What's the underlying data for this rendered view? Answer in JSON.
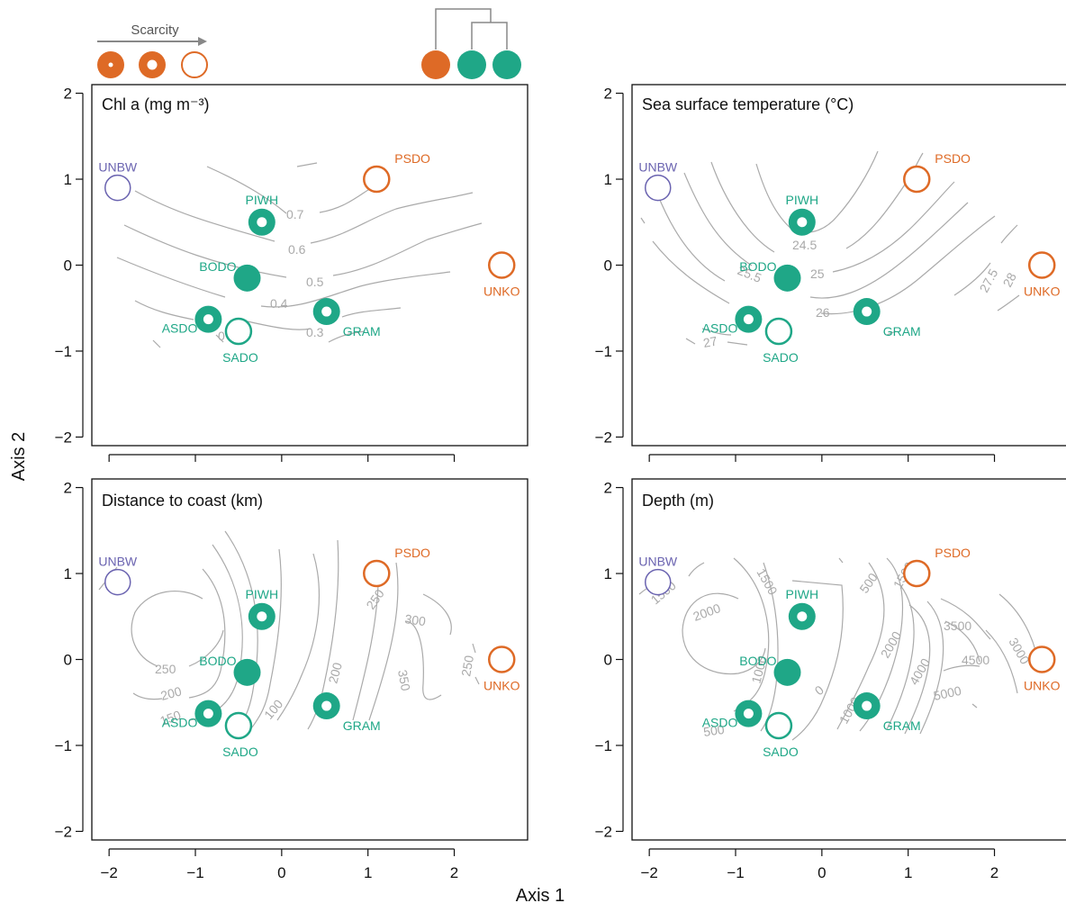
{
  "figure": {
    "xlabel": "Axis 1",
    "ylabel": "Axis 2"
  },
  "legend": {
    "scarcity_label": "Scarcity",
    "scarcity_color": "#de6a26"
  },
  "colors": {
    "green": "#1fa787",
    "orange": "#de6a26",
    "purple": "#6a63b0",
    "contour": "#aaaaaa",
    "axis": "#111111",
    "legend_grey": "#777777"
  },
  "chart_data": [
    {
      "type": "scatter",
      "title": "Chl a (mg m⁻³)",
      "xlim": [
        -2.2,
        2.85
      ],
      "ylim": [
        -2.1,
        2.1
      ],
      "xticks": [
        "−2",
        "−1",
        "0",
        "1",
        "2"
      ],
      "yticks": [
        "−2",
        "−1",
        "0",
        "1",
        "2"
      ],
      "contour_labels": [
        "0.7",
        "0.6",
        "0.5",
        "0.4",
        "0.3",
        "0"
      ],
      "points": [
        {
          "label": "UNBW",
          "x": -1.9,
          "y": 0.9,
          "group": "purple",
          "scarcity": "open"
        },
        {
          "label": "PSDO",
          "x": 1.1,
          "y": 1.0,
          "group": "orange",
          "scarcity": "open"
        },
        {
          "label": "PIWH",
          "x": -0.23,
          "y": 0.5,
          "group": "green",
          "scarcity": "ring"
        },
        {
          "label": "BODO",
          "x": -0.4,
          "y": -0.15,
          "group": "green",
          "scarcity": "filled"
        },
        {
          "label": "UNKO",
          "x": 2.55,
          "y": 0.0,
          "group": "orange",
          "scarcity": "open"
        },
        {
          "label": "ASDO",
          "x": -0.85,
          "y": -0.63,
          "group": "green",
          "scarcity": "ring"
        },
        {
          "label": "SADO",
          "x": -0.5,
          "y": -0.77,
          "group": "green",
          "scarcity": "open"
        },
        {
          "label": "GRAM",
          "x": 0.52,
          "y": -0.54,
          "group": "green",
          "scarcity": "ring"
        }
      ]
    },
    {
      "type": "scatter",
      "title": "Sea surface temperature (°C)",
      "xlim": [
        -2.2,
        2.85
      ],
      "ylim": [
        -2.1,
        2.1
      ],
      "xticks": [
        "−2",
        "−1",
        "0",
        "1",
        "2"
      ],
      "yticks": [
        "−2",
        "−1",
        "0",
        "1",
        "2"
      ],
      "contour_labels": [
        "24.5",
        "25",
        "25.5",
        "26",
        "27",
        "27.5",
        "28"
      ],
      "points": [
        {
          "label": "UNBW",
          "x": -1.9,
          "y": 0.9,
          "group": "purple",
          "scarcity": "open"
        },
        {
          "label": "PSDO",
          "x": 1.1,
          "y": 1.0,
          "group": "orange",
          "scarcity": "open"
        },
        {
          "label": "PIWH",
          "x": -0.23,
          "y": 0.5,
          "group": "green",
          "scarcity": "ring"
        },
        {
          "label": "BODO",
          "x": -0.4,
          "y": -0.15,
          "group": "green",
          "scarcity": "filled"
        },
        {
          "label": "UNKO",
          "x": 2.55,
          "y": 0.0,
          "group": "orange",
          "scarcity": "open"
        },
        {
          "label": "ASDO",
          "x": -0.85,
          "y": -0.63,
          "group": "green",
          "scarcity": "ring"
        },
        {
          "label": "SADO",
          "x": -0.5,
          "y": -0.77,
          "group": "green",
          "scarcity": "open"
        },
        {
          "label": "GRAM",
          "x": 0.52,
          "y": -0.54,
          "group": "green",
          "scarcity": "ring"
        }
      ]
    },
    {
      "type": "scatter",
      "title": "Distance to coast (km)",
      "xlim": [
        -2.2,
        2.85
      ],
      "ylim": [
        -2.1,
        2.1
      ],
      "xticks": [
        "−2",
        "−1",
        "0",
        "1",
        "2"
      ],
      "yticks": [
        "−2",
        "−1",
        "0",
        "1",
        "2"
      ],
      "contour_labels": [
        "250",
        "200",
        "150",
        "100",
        "200",
        "250",
        "300",
        "350",
        "250"
      ],
      "points": [
        {
          "label": "UNBW",
          "x": -1.9,
          "y": 0.9,
          "group": "purple",
          "scarcity": "open"
        },
        {
          "label": "PSDO",
          "x": 1.1,
          "y": 1.0,
          "group": "orange",
          "scarcity": "open"
        },
        {
          "label": "PIWH",
          "x": -0.23,
          "y": 0.5,
          "group": "green",
          "scarcity": "ring"
        },
        {
          "label": "BODO",
          "x": -0.4,
          "y": -0.15,
          "group": "green",
          "scarcity": "filled"
        },
        {
          "label": "UNKO",
          "x": 2.55,
          "y": 0.0,
          "group": "orange",
          "scarcity": "open"
        },
        {
          "label": "ASDO",
          "x": -0.85,
          "y": -0.63,
          "group": "green",
          "scarcity": "ring"
        },
        {
          "label": "SADO",
          "x": -0.5,
          "y": -0.77,
          "group": "green",
          "scarcity": "open"
        },
        {
          "label": "GRAM",
          "x": 0.52,
          "y": -0.54,
          "group": "green",
          "scarcity": "ring"
        }
      ]
    },
    {
      "type": "scatter",
      "title": "Depth (m)",
      "xlim": [
        -2.2,
        2.85
      ],
      "ylim": [
        -2.1,
        2.1
      ],
      "xticks": [
        "−2",
        "−1",
        "0",
        "1",
        "2"
      ],
      "yticks": [
        "−2",
        "−1",
        "0",
        "1",
        "2"
      ],
      "contour_labels": [
        "1500",
        "2000",
        "1500",
        "500",
        "1500",
        "1000",
        "0",
        "2000",
        "1000",
        "4000",
        "3500",
        "4500",
        "5000",
        "3000",
        "500"
      ],
      "points": [
        {
          "label": "UNBW",
          "x": -1.9,
          "y": 0.9,
          "group": "purple",
          "scarcity": "open"
        },
        {
          "label": "PSDO",
          "x": 1.1,
          "y": 1.0,
          "group": "orange",
          "scarcity": "open"
        },
        {
          "label": "PIWH",
          "x": -0.23,
          "y": 0.5,
          "group": "green",
          "scarcity": "ring"
        },
        {
          "label": "BODO",
          "x": -0.4,
          "y": -0.15,
          "group": "green",
          "scarcity": "filled"
        },
        {
          "label": "UNKO",
          "x": 2.55,
          "y": 0.0,
          "group": "orange",
          "scarcity": "open"
        },
        {
          "label": "ASDO",
          "x": -0.85,
          "y": -0.63,
          "group": "green",
          "scarcity": "ring"
        },
        {
          "label": "SADO",
          "x": -0.5,
          "y": -0.77,
          "group": "green",
          "scarcity": "open"
        },
        {
          "label": "GRAM",
          "x": 0.52,
          "y": -0.54,
          "group": "green",
          "scarcity": "ring"
        }
      ]
    }
  ]
}
